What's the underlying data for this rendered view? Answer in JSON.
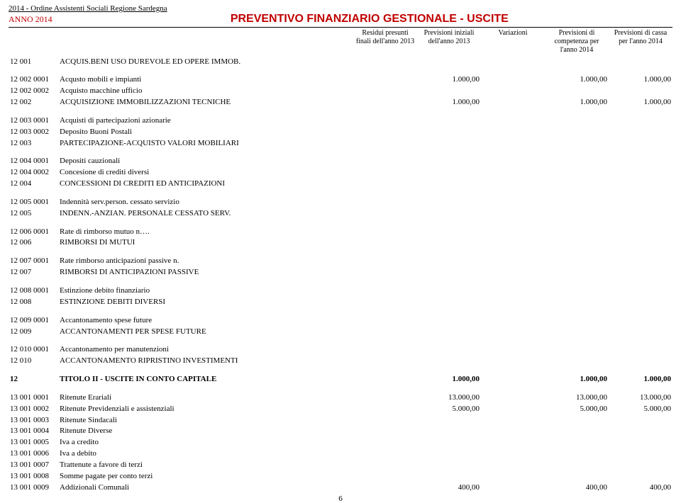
{
  "org_line": "2014 - Ordine Assistenti Sociali Regione Sardegna",
  "anno": "ANNO 2014",
  "doc_title": "PREVENTIVO FINANZIARIO GESTIONALE - USCITE",
  "columns": [
    "Residui presunti finali dell'anno 2013",
    "Previsioni iniziali dell'anno 2013",
    "Variazioni",
    "Previsioni di competenza per l'anno 2014",
    "Previsioni di cassa per l'anno 2014"
  ],
  "rows": [
    {
      "code": "12 001",
      "desc": "ACQUIS.BENI USO DUREVOLE ED OPERE IMMOB.",
      "v": [
        "",
        "",
        "",
        "",
        ""
      ]
    },
    {
      "gap": true
    },
    {
      "code": "12 002 0001",
      "desc": "Acqusto mobili e impianti",
      "v": [
        "",
        "1.000,00",
        "",
        "1.000,00",
        "1.000,00"
      ]
    },
    {
      "code": "12 002 0002",
      "desc": "Acquisto macchine ufficio",
      "v": [
        "",
        "",
        "",
        "",
        ""
      ]
    },
    {
      "code": "12 002",
      "desc": "ACQUISIZIONE IMMOBILIZZAZIONI TECNICHE",
      "v": [
        "",
        "1.000,00",
        "",
        "1.000,00",
        "1.000,00"
      ]
    },
    {
      "gap": true
    },
    {
      "code": "12 003 0001",
      "desc": "Acquisti di partecipazioni azionarie",
      "v": [
        "",
        "",
        "",
        "",
        ""
      ]
    },
    {
      "code": "12 003 0002",
      "desc": "Deposito Buoni Postali",
      "v": [
        "",
        "",
        "",
        "",
        ""
      ]
    },
    {
      "code": "12 003",
      "desc": "PARTECIPAZIONE-ACQUISTO VALORI MOBILIARI",
      "v": [
        "",
        "",
        "",
        "",
        ""
      ]
    },
    {
      "gap": true
    },
    {
      "code": "12 004 0001",
      "desc": "Depositi cauzionali",
      "v": [
        "",
        "",
        "",
        "",
        ""
      ]
    },
    {
      "code": "12 004 0002",
      "desc": "Concesione di crediti diversi",
      "v": [
        "",
        "",
        "",
        "",
        ""
      ]
    },
    {
      "code": "12 004",
      "desc": "CONCESSIONI DI CREDITI ED ANTICIPAZIONI",
      "v": [
        "",
        "",
        "",
        "",
        ""
      ]
    },
    {
      "gap": true
    },
    {
      "code": "12 005 0001",
      "desc": "Indennità serv.person. cessato servizio",
      "v": [
        "",
        "",
        "",
        "",
        ""
      ]
    },
    {
      "code": "12 005",
      "desc": "INDENN.-ANZIAN. PERSONALE CESSATO SERV.",
      "v": [
        "",
        "",
        "",
        "",
        ""
      ]
    },
    {
      "gap": true
    },
    {
      "code": "12 006 0001",
      "desc": "Rate di rimborso mutuo n….",
      "v": [
        "",
        "",
        "",
        "",
        ""
      ]
    },
    {
      "code": "12 006",
      "desc": "RIMBORSI DI MUTUI",
      "v": [
        "",
        "",
        "",
        "",
        ""
      ]
    },
    {
      "gap": true
    },
    {
      "code": "12 007 0001",
      "desc": "Rate rimborso anticipazioni passive n.",
      "v": [
        "",
        "",
        "",
        "",
        ""
      ]
    },
    {
      "code": "12 007",
      "desc": "RIMBORSI DI ANTICIPAZIONI PASSIVE",
      "v": [
        "",
        "",
        "",
        "",
        ""
      ]
    },
    {
      "gap": true
    },
    {
      "code": "12 008 0001",
      "desc": "Estinzione debito finanziario",
      "v": [
        "",
        "",
        "",
        "",
        ""
      ]
    },
    {
      "code": "12 008",
      "desc": "ESTINZIONE DEBITI DIVERSI",
      "v": [
        "",
        "",
        "",
        "",
        ""
      ]
    },
    {
      "gap": true
    },
    {
      "code": "12 009 0001",
      "desc": "Accantonamento spese future",
      "v": [
        "",
        "",
        "",
        "",
        ""
      ]
    },
    {
      "code": "12 009",
      "desc": "ACCANTONAMENTI PER SPESE FUTURE",
      "v": [
        "",
        "",
        "",
        "",
        ""
      ]
    },
    {
      "gap": true
    },
    {
      "code": "12 010 0001",
      "desc": "Accantonamento per manutenzioni",
      "v": [
        "",
        "",
        "",
        "",
        ""
      ]
    },
    {
      "code": "12 010",
      "desc": "ACCANTONAMENTO RIPRISTINO INVESTIMENTI",
      "v": [
        "",
        "",
        "",
        "",
        ""
      ]
    },
    {
      "gap": true
    },
    {
      "code": "12",
      "desc": "TITOLO II - USCITE IN CONTO CAPITALE",
      "v": [
        "",
        "1.000,00",
        "",
        "1.000,00",
        "1.000,00"
      ],
      "bold": true
    },
    {
      "gap": true
    },
    {
      "code": "13 001 0001",
      "desc": "Ritenute Erariali",
      "v": [
        "",
        "13.000,00",
        "",
        "13.000,00",
        "13.000,00"
      ]
    },
    {
      "code": "13 001 0002",
      "desc": "Ritenute Previdenziali e assistenziali",
      "v": [
        "",
        "5.000,00",
        "",
        "5.000,00",
        "5.000,00"
      ]
    },
    {
      "code": "13 001 0003",
      "desc": "Ritenute Sindacali",
      "v": [
        "",
        "",
        "",
        "",
        ""
      ]
    },
    {
      "code": "13 001 0004",
      "desc": "Ritenute Diverse",
      "v": [
        "",
        "",
        "",
        "",
        ""
      ]
    },
    {
      "code": "13 001 0005",
      "desc": "Iva a credito",
      "v": [
        "",
        "",
        "",
        "",
        ""
      ]
    },
    {
      "code": "13 001 0006",
      "desc": "Iva a debito",
      "v": [
        "",
        "",
        "",
        "",
        ""
      ]
    },
    {
      "code": "13 001 0007",
      "desc": "Trattenute a favore di terzi",
      "v": [
        "",
        "",
        "",
        "",
        ""
      ]
    },
    {
      "code": "13 001 0008",
      "desc": "Somme pagate per conto terzi",
      "v": [
        "",
        "",
        "",
        "",
        ""
      ]
    },
    {
      "code": "13 001 0009",
      "desc": "Addizionali Comunali",
      "v": [
        "",
        "400,00",
        "",
        "400,00",
        "400,00"
      ]
    }
  ],
  "page_number": "6"
}
